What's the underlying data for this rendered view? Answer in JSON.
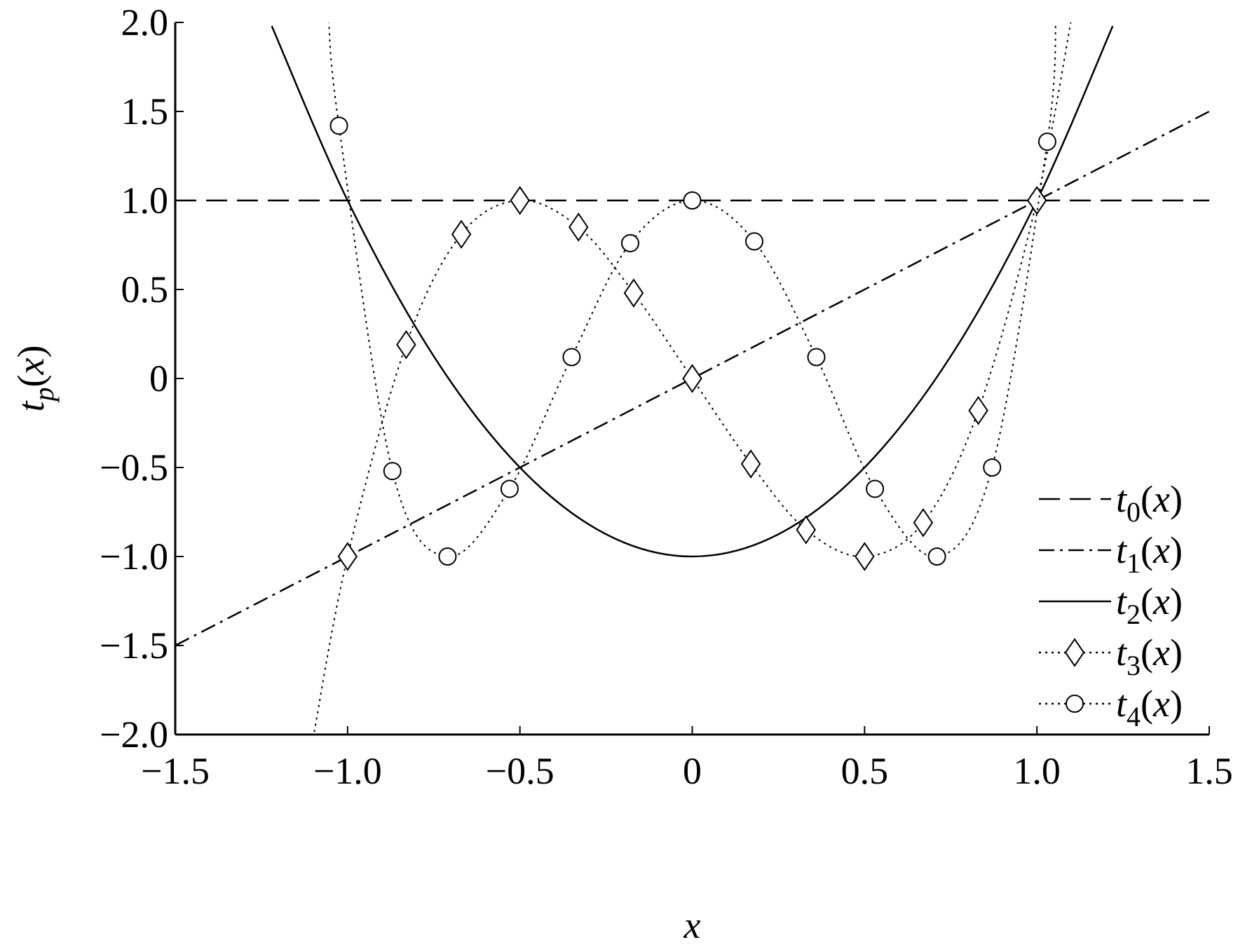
{
  "chart_data": {
    "type": "line",
    "xlabel": "x",
    "ylabel": "tp(x)",
    "xlim": [
      -1.5,
      1.5
    ],
    "ylim": [
      -2,
      2
    ],
    "xticks": [
      {
        "value": -1.5,
        "label": "−1.5"
      },
      {
        "value": -1,
        "label": "−1.0"
      },
      {
        "value": -0.5,
        "label": "−0.5"
      },
      0,
      0.5,
      {
        "value": 1,
        "label": "1.0"
      },
      1.5
    ],
    "yticks": [
      {
        "value": -2,
        "label": "−2.0"
      },
      {
        "value": -1.5,
        "label": "−1.5"
      },
      {
        "value": -1,
        "label": "−1.0"
      },
      {
        "value": -0.5,
        "label": "−0.5"
      },
      0,
      0.5,
      {
        "value": 1,
        "label": "1.0"
      },
      1.5,
      {
        "value": 2,
        "label": "2.0"
      }
    ],
    "legend": "lower right",
    "series": [
      {
        "name": "t0(x)",
        "color": "#000000",
        "style": "dashed",
        "x": [
          -1.5,
          1.5
        ],
        "values": [
          1,
          1
        ]
      },
      {
        "name": "t1(x)",
        "color": "#000000",
        "style": "dashdot",
        "x": [
          -1.5,
          1.5
        ],
        "values": [
          -1.5,
          1.5
        ]
      },
      {
        "name": "t2(x)",
        "color": "#000000",
        "style": "solid",
        "x": [
          -1.22,
          -1,
          -0.75,
          -0.5,
          -0.25,
          0,
          0.25,
          0.5,
          0.75,
          1,
          1.22
        ],
        "values": [
          1.98,
          1,
          0.125,
          -0.5,
          -0.875,
          -1,
          -0.875,
          -0.5,
          0.125,
          1,
          1.98
        ]
      },
      {
        "name": "t3(x)",
        "color": "#000000",
        "style": "dotted",
        "marker": "diamond",
        "x": [
          -1.1,
          -1,
          -0.83,
          -0.67,
          -0.5,
          -0.33,
          -0.17,
          0,
          0.17,
          0.33,
          0.5,
          0.67,
          0.83,
          1,
          1.1
        ],
        "values": [
          -2.02,
          -1,
          0.19,
          0.81,
          1,
          0.85,
          0.48,
          0,
          -0.48,
          -0.85,
          -1,
          -0.81,
          -0.18,
          1,
          2.02
        ],
        "marker_x": [
          -1,
          -0.83,
          -0.67,
          -0.5,
          -0.33,
          -0.17,
          0,
          0.17,
          0.33,
          0.5,
          0.67,
          0.83,
          1
        ],
        "marker_values": [
          -1,
          0.19,
          0.81,
          1,
          0.85,
          0.48,
          0,
          -0.48,
          -0.85,
          -1,
          -0.81,
          -0.18,
          1
        ]
      },
      {
        "name": "t4(x)",
        "color": "#000000",
        "style": "dotted",
        "marker": "circle",
        "x": [
          -1.055,
          -1.025,
          -0.87,
          -0.71,
          -0.53,
          -0.35,
          -0.18,
          0,
          0.18,
          0.36,
          0.53,
          0.71,
          0.87,
          1.03,
          1.055
        ],
        "values": [
          2.01,
          1.42,
          -0.52,
          -1,
          -0.62,
          0.12,
          0.76,
          1,
          0.77,
          0.12,
          -0.62,
          -1,
          -0.5,
          1.33,
          2.01
        ],
        "marker_x": [
          -1.025,
          -0.87,
          -0.71,
          -0.53,
          -0.35,
          -0.18,
          0,
          0.18,
          0.36,
          0.53,
          0.71,
          0.87,
          1.03
        ],
        "marker_values": [
          1.42,
          -0.52,
          -1,
          -0.62,
          0.12,
          0.76,
          1,
          0.77,
          0.12,
          -0.62,
          -1,
          -0.5,
          1.33
        ]
      }
    ]
  }
}
